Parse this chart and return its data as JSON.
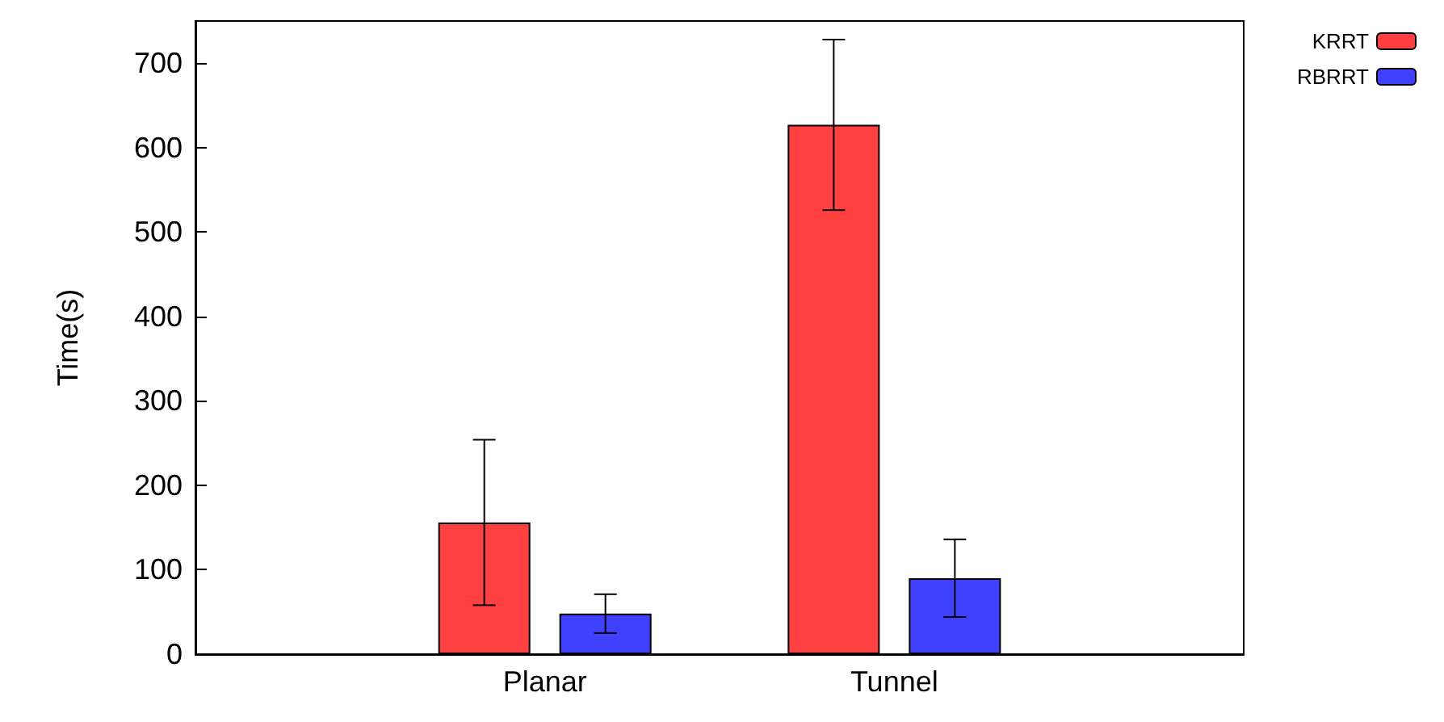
{
  "chart_data": {
    "type": "bar",
    "ylabel": "Time(s)",
    "categories": [
      null,
      "Planar",
      "Tunnel",
      null
    ],
    "series": [
      {
        "name": "KRRT",
        "color": "#ff4040",
        "values": [
          null,
          156,
          627,
          null
        ],
        "errors": [
          null,
          98,
          101,
          null
        ]
      },
      {
        "name": "RBRRT",
        "color": "#4040ff",
        "values": [
          null,
          48,
          90,
          null
        ],
        "errors": [
          null,
          23,
          46,
          null
        ]
      }
    ],
    "ylim": [
      0,
      750
    ],
    "yticks": [
      0,
      100,
      200,
      300,
      400,
      500,
      600,
      700
    ],
    "grid": false,
    "legend": "top right"
  }
}
